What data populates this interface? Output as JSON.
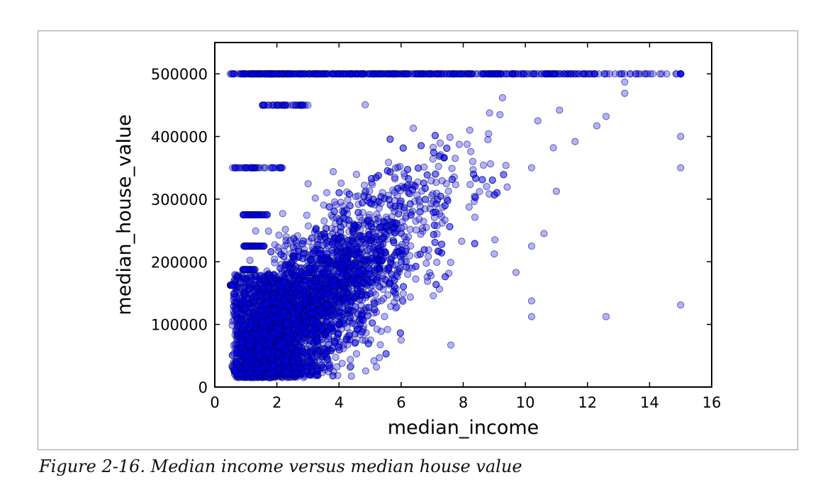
{
  "figure": {
    "caption": "Figure 2-16. Median income versus median house value"
  },
  "chart_data": {
    "type": "scatter",
    "title": "",
    "xlabel": "median_income",
    "ylabel": "median_house_value",
    "xlim": [
      0,
      16
    ],
    "ylim": [
      0,
      550000
    ],
    "xticks": [
      0,
      2,
      4,
      6,
      8,
      10,
      12,
      14,
      16
    ],
    "yticks": [
      0,
      100000,
      200000,
      300000,
      400000,
      500000
    ],
    "grid": false,
    "legend": "none",
    "marker_color": "#0000ff",
    "marker_edge_color": "#000066",
    "marker_alpha": 0.3,
    "cap_value": 500001,
    "horizontal_bands": [
      {
        "y": 500001,
        "x_range": [
          0.5,
          15.0
        ]
      },
      {
        "y": 450000,
        "x_range": [
          1.5,
          3.0
        ]
      },
      {
        "y": 350000,
        "x_range": [
          0.5,
          2.2
        ]
      },
      {
        "y": 275000,
        "x_range": [
          0.9,
          1.7
        ]
      },
      {
        "y": 225000,
        "x_range": [
          0.9,
          1.6
        ]
      },
      {
        "y": 187500,
        "x_range": [
          0.9,
          1.3
        ]
      },
      {
        "y": 162500,
        "x_range": [
          0.5,
          0.6
        ]
      }
    ],
    "main_cloud": {
      "description_trend": "positive correlation",
      "x_range": [
        0.5,
        10
      ],
      "y_range": [
        15000,
        500000
      ]
    },
    "outliers": [
      {
        "x": 15.0,
        "y": 400000
      },
      {
        "x": 15.0,
        "y": 350000
      },
      {
        "x": 15.0,
        "y": 131000
      },
      {
        "x": 12.6,
        "y": 112500
      },
      {
        "x": 10.2,
        "y": 137500
      },
      {
        "x": 10.2,
        "y": 112500
      },
      {
        "x": 10.6,
        "y": 245000
      },
      {
        "x": 10.2,
        "y": 225000
      },
      {
        "x": 9.7,
        "y": 183000
      },
      {
        "x": 9.0,
        "y": 212500
      },
      {
        "x": 11.0,
        "y": 312500
      },
      {
        "x": 11.6,
        "y": 392000
      },
      {
        "x": 12.3,
        "y": 417000
      },
      {
        "x": 12.6,
        "y": 432000
      },
      {
        "x": 13.2,
        "y": 469000
      },
      {
        "x": 13.2,
        "y": 487000
      },
      {
        "x": 11.1,
        "y": 442000
      },
      {
        "x": 10.9,
        "y": 382000
      },
      {
        "x": 10.4,
        "y": 425000
      },
      {
        "x": 10.2,
        "y": 350000
      },
      {
        "x": 7.6,
        "y": 67000
      },
      {
        "x": 5.3,
        "y": 47000
      },
      {
        "x": 6.0,
        "y": 75000
      }
    ]
  }
}
